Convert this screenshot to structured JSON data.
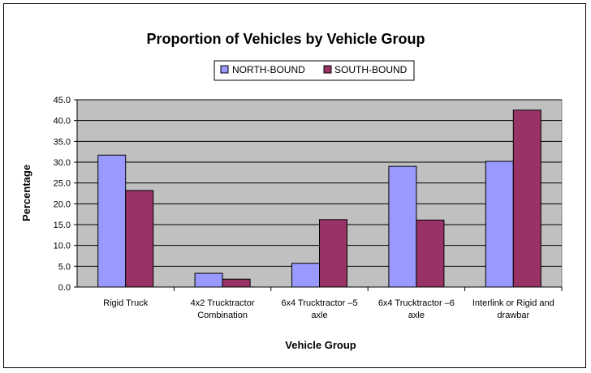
{
  "chart_data": {
    "type": "bar",
    "title": "Proportion of Vehicles by Vehicle Group",
    "xlabel": "Vehicle Group",
    "ylabel": "Percentage",
    "ylim": [
      0,
      45
    ],
    "yticks": [
      "0.0",
      "5.0",
      "10.0",
      "15.0",
      "20.0",
      "25.0",
      "30.0",
      "35.0",
      "40.0",
      "45.0"
    ],
    "grid": true,
    "legend_position": "top-center",
    "categories": [
      [
        "Rigid Truck"
      ],
      [
        "4x2 Trucktractor",
        "Combination"
      ],
      [
        "6x4 Trucktractor –5",
        "axle"
      ],
      [
        "6x4 Trucktractor –6",
        "axle"
      ],
      [
        "Interlink or Rigid and",
        "drawbar"
      ]
    ],
    "series": [
      {
        "name": "NORTH-BOUND",
        "color": "#9999ff",
        "values": [
          31.7,
          3.3,
          5.7,
          29.0,
          30.2
        ]
      },
      {
        "name": "SOUTH-BOUND",
        "color": "#993366",
        "values": [
          23.2,
          1.9,
          16.2,
          16.1,
          42.5
        ]
      }
    ],
    "plot_background": "#c0c0c0"
  }
}
